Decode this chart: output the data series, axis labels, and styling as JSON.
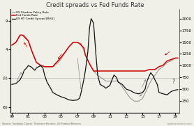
{
  "title": "Credit spreads vs Fed Funds Rate",
  "legend": [
    "US Shadow Policy Rate",
    "Fed Funds Rate",
    "US HY Credit Spread [RHS]"
  ],
  "legend_colors": [
    "#aaaaaa",
    "#cc0000",
    "#111111"
  ],
  "source_text": "Source: Topdown Charts, Thomson Reuters, US Federal Reserve",
  "watermark": "topdowncharts.com",
  "xlim": [
    1998.8,
    2019.5
  ],
  "ylim_left": [
    -7,
    11
  ],
  "ylim_right": [
    0,
    2200
  ],
  "yticks_left": [
    -6,
    -1,
    4,
    9
  ],
  "ytick_labels_left": [
    "(6)",
    "(1)",
    "4",
    "9"
  ],
  "yticks_right": [
    250,
    500,
    750,
    1000,
    1250,
    1500,
    1750,
    2000
  ],
  "xtick_positions": [
    1999,
    2001,
    2003,
    2005,
    2007,
    2009,
    2011,
    2013,
    2015,
    2017,
    2019
  ],
  "xtick_labels": [
    "99",
    "01",
    "03",
    "05",
    "07",
    "09",
    "11",
    "13",
    "15",
    "17",
    "19"
  ],
  "fed_funds_rate": {
    "years": [
      1999.0,
      1999.5,
      2000.0,
      2000.3,
      2001.0,
      2001.5,
      2002.0,
      2002.5,
      2003.0,
      2003.5,
      2004.0,
      2004.3,
      2004.8,
      2005.5,
      2006.0,
      2006.5,
      2007.0,
      2007.3,
      2007.8,
      2008.0,
      2008.5,
      2009.0,
      2009.5,
      2010.0,
      2011.0,
      2012.0,
      2013.0,
      2014.0,
      2015.0,
      2015.3,
      2015.8,
      2016.0,
      2016.5,
      2017.0,
      2017.5,
      2018.0,
      2018.5,
      2019.0,
      2019.3
    ],
    "values": [
      4.75,
      5.25,
      6.5,
      6.5,
      5.5,
      3.5,
      1.75,
      1.25,
      1.0,
      1.0,
      1.0,
      1.5,
      2.25,
      3.5,
      4.5,
      5.25,
      5.25,
      5.0,
      4.25,
      3.0,
      1.5,
      0.25,
      0.25,
      0.25,
      0.25,
      0.25,
      0.25,
      0.25,
      0.25,
      0.25,
      0.5,
      0.5,
      0.5,
      1.0,
      1.25,
      2.0,
      2.25,
      2.5,
      2.5
    ]
  },
  "shadow_rate": {
    "years": [
      1999.0,
      1999.5,
      2000.0,
      2000.5,
      2001.0,
      2001.5,
      2002.0,
      2002.5,
      2003.0,
      2003.5,
      2004.0,
      2004.5,
      2005.0,
      2005.5,
      2006.0,
      2006.5,
      2007.0,
      2007.5,
      2008.0,
      2008.5,
      2009.0,
      2009.5,
      2010.0,
      2010.5,
      2011.0,
      2011.5,
      2012.0,
      2012.5,
      2013.0,
      2013.5,
      2014.0,
      2014.5,
      2015.0,
      2015.5,
      2016.0,
      2016.5,
      2017.0,
      2017.5,
      2018.0,
      2018.5,
      2019.0,
      2019.3
    ],
    "values": [
      4.75,
      5.25,
      6.5,
      6.5,
      5.5,
      3.5,
      1.75,
      1.25,
      1.0,
      1.0,
      1.0,
      1.5,
      2.25,
      3.5,
      4.5,
      5.25,
      5.25,
      5.0,
      3.0,
      1.5,
      0.25,
      -0.5,
      -1.0,
      -1.5,
      -1.5,
      -1.5,
      -1.5,
      -2.5,
      -3.5,
      -4.5,
      -5.0,
      -5.0,
      -4.5,
      -3.0,
      -1.5,
      -0.5,
      0.5,
      1.0,
      1.75,
      2.0,
      2.5,
      2.5
    ]
  },
  "hy_spread": {
    "years": [
      1999.0,
      1999.5,
      2000.0,
      2000.3,
      2000.5,
      2000.8,
      2001.0,
      2001.3,
      2001.5,
      2001.8,
      2002.0,
      2002.3,
      2002.5,
      2002.8,
      2003.0,
      2003.3,
      2003.8,
      2004.0,
      2004.5,
      2005.0,
      2005.5,
      2006.0,
      2006.5,
      2007.0,
      2007.3,
      2007.5,
      2007.8,
      2008.0,
      2008.3,
      2008.5,
      2008.7,
      2009.0,
      2009.3,
      2009.5,
      2009.8,
      2010.0,
      2010.3,
      2010.5,
      2011.0,
      2011.3,
      2011.5,
      2011.8,
      2012.0,
      2012.5,
      2013.0,
      2013.5,
      2014.0,
      2014.5,
      2015.0,
      2015.3,
      2015.5,
      2015.8,
      2016.0,
      2016.3,
      2016.5,
      2016.8,
      2017.0,
      2017.5,
      2018.0,
      2018.5,
      2019.0,
      2019.3
    ],
    "values": [
      600,
      620,
      700,
      800,
      900,
      950,
      1000,
      980,
      950,
      900,
      950,
      980,
      1000,
      950,
      800,
      650,
      500,
      430,
      380,
      340,
      310,
      270,
      260,
      270,
      310,
      450,
      700,
      900,
      1300,
      1800,
      2000,
      1900,
      1200,
      800,
      600,
      580,
      550,
      520,
      580,
      720,
      800,
      750,
      650,
      600,
      500,
      470,
      420,
      400,
      430,
      500,
      650,
      780,
      850,
      780,
      700,
      600,
      430,
      400,
      380,
      450,
      480,
      490
    ]
  },
  "bg_color": "#f0efe8",
  "grid_color": "#cccccc"
}
